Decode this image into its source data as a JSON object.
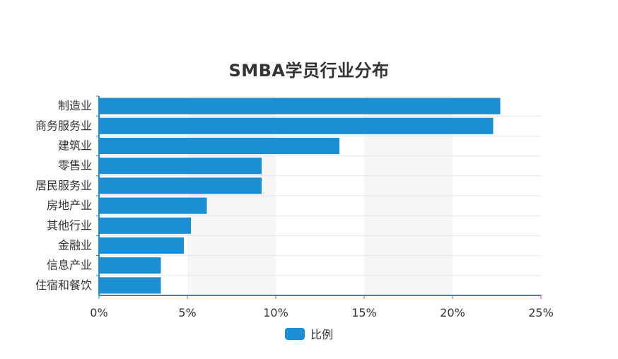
{
  "chart_data": {
    "type": "bar",
    "orientation": "horizontal",
    "title": "SMBA学员行业分布",
    "categories": [
      "制造业",
      "商务服务业",
      "建筑业",
      "零售业",
      "居民服务业",
      "房地产业",
      "其他行业",
      "金融业",
      "信息产业",
      "住宿和餐饮"
    ],
    "series": [
      {
        "name": "比例",
        "values": [
          22.7,
          22.3,
          13.6,
          9.2,
          9.2,
          6.1,
          5.2,
          4.8,
          3.5,
          3.5
        ]
      }
    ],
    "xlim": [
      0,
      25
    ],
    "xticks": [
      0,
      5,
      10,
      15,
      20,
      25
    ],
    "xtick_labels": [
      "0%",
      "5%",
      "10%",
      "15%",
      "20%",
      "25%"
    ],
    "legend_position": "bottom",
    "grid": true,
    "colors": {
      "bar": "#1c8fd4",
      "axis": "#1c8fd4",
      "band": "#f6f6f6"
    }
  }
}
